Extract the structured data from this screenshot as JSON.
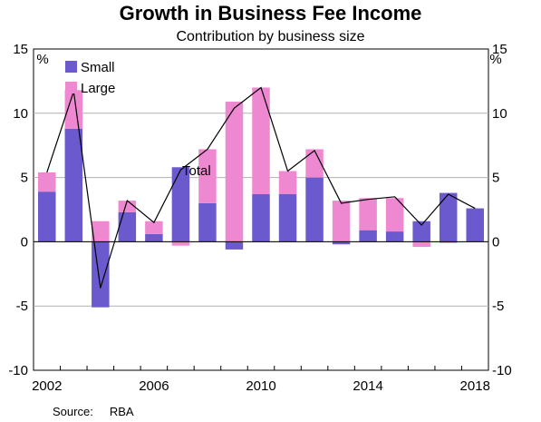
{
  "title": "Growth in Business Fee Income",
  "subtitle": "Contribution by business size",
  "source": {
    "label": "Source:",
    "value": "RBA"
  },
  "chart_data": {
    "type": "bar",
    "stacked": true,
    "title": "Growth in Business Fee Income",
    "subtitle": "Contribution by business size",
    "unit_left": "%",
    "unit_right": "%",
    "ylim": [
      -10,
      15
    ],
    "yticks": [
      -10,
      -5,
      0,
      5,
      10,
      15
    ],
    "x": [
      2002,
      2003,
      2004,
      2005,
      2006,
      2007,
      2008,
      2009,
      2010,
      2011,
      2012,
      2013,
      2014,
      2015,
      2016,
      2017,
      2018
    ],
    "xtick_labels": [
      "2002",
      "2006",
      "2010",
      "2014",
      "2018"
    ],
    "series": [
      {
        "name": "Small",
        "type": "bar",
        "color": "#6a5acd",
        "values": [
          3.9,
          8.8,
          -5.1,
          2.3,
          0.6,
          5.8,
          3.0,
          -0.6,
          3.7,
          3.7,
          5.0,
          -0.2,
          0.9,
          0.8,
          1.6,
          3.8,
          2.6
        ]
      },
      {
        "name": "Large",
        "type": "bar",
        "color": "#ee88d0",
        "values": [
          1.5,
          3.0,
          1.6,
          0.9,
          1.0,
          -0.3,
          4.2,
          10.9,
          8.3,
          1.8,
          2.2,
          3.2,
          2.5,
          2.6,
          -0.4,
          -0.1,
          0.0
        ]
      },
      {
        "name": "Total",
        "type": "line",
        "color": "#000000",
        "values": [
          5.4,
          11.7,
          -3.6,
          3.2,
          1.5,
          5.6,
          7.2,
          10.4,
          12.0,
          5.5,
          7.1,
          3.0,
          3.3,
          3.5,
          1.3,
          3.7,
          2.6
        ]
      }
    ],
    "legend": {
      "placement": "top-left",
      "items": [
        "Small",
        "Large"
      ]
    },
    "annotation": "Total",
    "grid": true
  }
}
